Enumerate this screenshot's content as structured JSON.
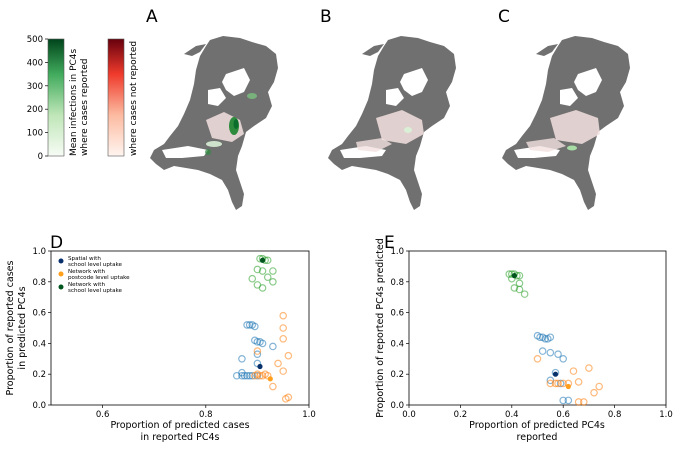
{
  "panels": {
    "A": "A",
    "B": "B",
    "C": "C",
    "D": "D",
    "E": "E"
  },
  "colorbars": {
    "green": {
      "ticks": [
        "0",
        "100",
        "200",
        "300",
        "400",
        "500"
      ],
      "label_line1": "Mean infections in PC4s",
      "label_line2": "where cases reported",
      "low_color": "#f7fcf5",
      "high_color": "#00441b"
    },
    "red": {
      "label": "where cases not reported",
      "low_color": "#fff5f0",
      "high_color": "#67000d"
    }
  },
  "maps": {
    "land_color": "#6f6f6f",
    "highlight_colors": [
      "#f3e1df",
      "#d9efd6",
      "#2e8b3e",
      "#0b6e2c"
    ]
  },
  "legend": {
    "items": [
      {
        "label1": "Spatial with",
        "label2": "school level uptake",
        "color": "#08306b"
      },
      {
        "label1": "Network with",
        "label2": "postcode level uptake",
        "color": "#ff9f1c"
      },
      {
        "label1": "Network with",
        "label2": "school level uptake",
        "color": "#00551f"
      }
    ]
  },
  "chart_data": [
    {
      "panel": "D",
      "type": "scatter",
      "xlabel": "Proportion of predicted cases\nin reported PC4s",
      "ylabel": "Proportion of reported cases\nin predicted PC4s",
      "xlim": [
        0.5,
        1.0
      ],
      "ylim": [
        0.0,
        1.0
      ],
      "xticks": [
        "0.6",
        "0.8",
        "1.0"
      ],
      "yticks": [
        "0.0",
        "0.2",
        "0.4",
        "0.6",
        "0.8",
        "1.0"
      ],
      "series": [
        {
          "name": "Spatial with school level uptake",
          "color": "#1f77b4",
          "highlight": [
            0.905,
            0.25
          ],
          "points": [
            [
              0.86,
              0.19
            ],
            [
              0.87,
              0.19
            ],
            [
              0.875,
              0.19
            ],
            [
              0.88,
              0.19
            ],
            [
              0.885,
              0.19
            ],
            [
              0.89,
              0.19
            ],
            [
              0.9,
              0.19
            ],
            [
              0.88,
              0.52
            ],
            [
              0.885,
              0.52
            ],
            [
              0.89,
              0.52
            ],
            [
              0.895,
              0.51
            ],
            [
              0.9,
              0.41
            ],
            [
              0.905,
              0.41
            ],
            [
              0.895,
              0.42
            ],
            [
              0.91,
              0.4
            ],
            [
              0.9,
              0.33
            ],
            [
              0.87,
              0.3
            ],
            [
              0.9,
              0.27
            ],
            [
              0.93,
              0.38
            ],
            [
              0.87,
              0.21
            ]
          ]
        },
        {
          "name": "Network with postcode level uptake",
          "color": "#ff7f0e",
          "highlight": [
            0.925,
            0.17
          ],
          "points": [
            [
              0.9,
              0.2
            ],
            [
              0.905,
              0.19
            ],
            [
              0.91,
              0.19
            ],
            [
              0.915,
              0.2
            ],
            [
              0.92,
              0.19
            ],
            [
              0.895,
              0.19
            ],
            [
              0.95,
              0.58
            ],
            [
              0.95,
              0.5
            ],
            [
              0.95,
              0.43
            ],
            [
              0.96,
              0.32
            ],
            [
              0.95,
              0.22
            ],
            [
              0.96,
              0.05
            ],
            [
              0.955,
              0.04
            ],
            [
              0.94,
              0.27
            ],
            [
              0.93,
              0.12
            ],
            [
              0.9,
              0.35
            ]
          ]
        },
        {
          "name": "Network with school level uptake",
          "color": "#2ca02c",
          "highlight": [
            0.91,
            0.94
          ],
          "points": [
            [
              0.905,
              0.95
            ],
            [
              0.91,
              0.95
            ],
            [
              0.915,
              0.94
            ],
            [
              0.92,
              0.94
            ],
            [
              0.9,
              0.88
            ],
            [
              0.91,
              0.87
            ],
            [
              0.93,
              0.87
            ],
            [
              0.89,
              0.82
            ],
            [
              0.92,
              0.83
            ],
            [
              0.9,
              0.78
            ],
            [
              0.91,
              0.76
            ],
            [
              0.93,
              0.8
            ]
          ]
        }
      ]
    },
    {
      "panel": "E",
      "type": "scatter",
      "xlabel": "Proportion of predicted PC4s\nreported",
      "ylabel": "Proportion of reported PC4s predicted",
      "xlim": [
        0.0,
        1.0
      ],
      "ylim": [
        0.0,
        1.0
      ],
      "xticks": [
        "0.0",
        "0.2",
        "0.4",
        "0.6",
        "0.8",
        "1.0"
      ],
      "yticks": [
        "0.0",
        "0.2",
        "0.4",
        "0.6",
        "0.8",
        "1.0"
      ],
      "series": [
        {
          "name": "Spatial with school level uptake",
          "color": "#1f77b4",
          "highlight": [
            0.57,
            0.2
          ],
          "points": [
            [
              0.5,
              0.45
            ],
            [
              0.51,
              0.44
            ],
            [
              0.52,
              0.44
            ],
            [
              0.53,
              0.43
            ],
            [
              0.54,
              0.43
            ],
            [
              0.55,
              0.44
            ],
            [
              0.52,
              0.35
            ],
            [
              0.55,
              0.34
            ],
            [
              0.58,
              0.33
            ],
            [
              0.6,
              0.3
            ],
            [
              0.57,
              0.21
            ],
            [
              0.6,
              0.03
            ],
            [
              0.62,
              0.03
            ],
            [
              0.55,
              0.16
            ],
            [
              0.59,
              0.14
            ]
          ]
        },
        {
          "name": "Network with postcode level uptake",
          "color": "#ff7f0e",
          "highlight": [
            0.62,
            0.12
          ],
          "points": [
            [
              0.55,
              0.14
            ],
            [
              0.57,
              0.14
            ],
            [
              0.58,
              0.14
            ],
            [
              0.6,
              0.14
            ],
            [
              0.62,
              0.14
            ],
            [
              0.66,
              0.15
            ],
            [
              0.64,
              0.22
            ],
            [
              0.7,
              0.24
            ],
            [
              0.74,
              0.12
            ],
            [
              0.68,
              0.02
            ],
            [
              0.66,
              0.02
            ],
            [
              0.72,
              0.08
            ],
            [
              0.5,
              0.3
            ]
          ]
        },
        {
          "name": "Network with school level uptake",
          "color": "#2ca02c",
          "highlight": [
            0.41,
            0.84
          ],
          "points": [
            [
              0.39,
              0.85
            ],
            [
              0.4,
              0.85
            ],
            [
              0.41,
              0.85
            ],
            [
              0.42,
              0.84
            ],
            [
              0.43,
              0.84
            ],
            [
              0.4,
              0.82
            ],
            [
              0.43,
              0.79
            ],
            [
              0.41,
              0.76
            ],
            [
              0.43,
              0.75
            ],
            [
              0.45,
              0.72
            ]
          ]
        }
      ]
    }
  ]
}
